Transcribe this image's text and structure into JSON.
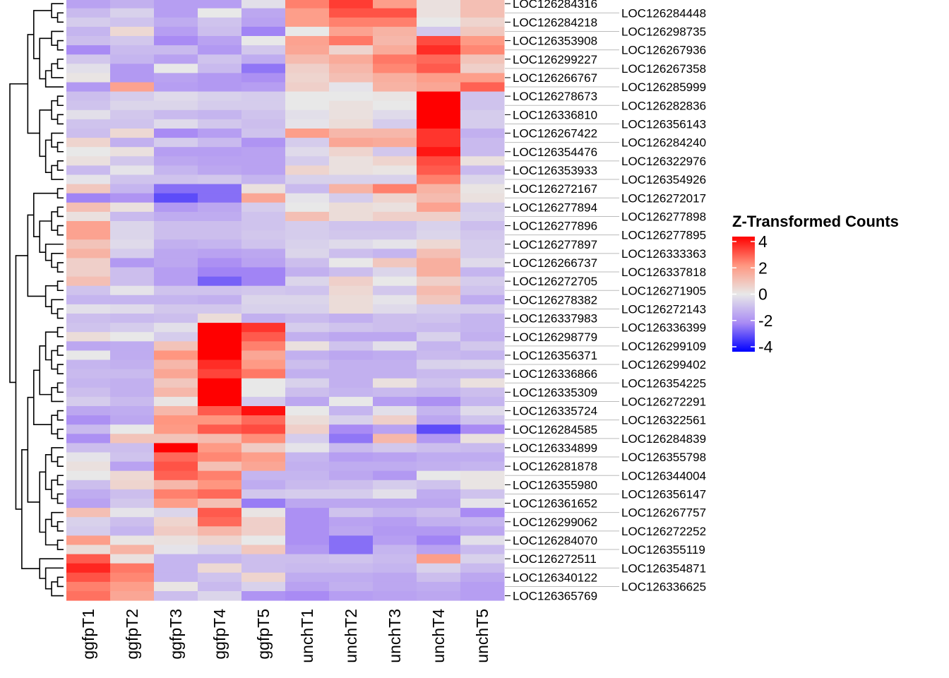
{
  "chart_data": {
    "type": "heatmap",
    "columns": [
      "ggfpT1",
      "ggfpT2",
      "ggfpT3",
      "ggfpT4",
      "ggfpT5",
      "unchT1",
      "unchT2",
      "unchT3",
      "unchT4",
      "unchT5"
    ],
    "rows": [
      "LOC126284316",
      "LOC126284448",
      "LOC126284218",
      "LOC126298735",
      "LOC126353908",
      "LOC126267936",
      "LOC126299227",
      "LOC126267358",
      "LOC126266767",
      "LOC126285999",
      "LOC126278673",
      "LOC126282836",
      "LOC126336810",
      "LOC126356143",
      "LOC126267422",
      "LOC126284240",
      "LOC126354476",
      "LOC126322976",
      "LOC126353933",
      "LOC126354926",
      "LOC126272167",
      "LOC126272017",
      "LOC126277894",
      "LOC126277898",
      "LOC126277896",
      "LOC126277895",
      "LOC126277897",
      "LOC126333363",
      "LOC126266737",
      "LOC126337818",
      "LOC126272705",
      "LOC126271905",
      "LOC126278382",
      "LOC126272143",
      "LOC126337983",
      "LOC126336399",
      "LOC126298779",
      "LOC126299109",
      "LOC126356371",
      "LOC126299402",
      "LOC126336866",
      "LOC126354225",
      "LOC126335309",
      "LOC126272291",
      "LOC126335724",
      "LOC126322561",
      "LOC126284585",
      "LOC126284839",
      "LOC126334899",
      "LOC126355798",
      "LOC126281878",
      "LOC126344004",
      "LOC126355980",
      "LOC126356147",
      "LOC126361652",
      "LOC126267757",
      "LOC126299062",
      "LOC126272252",
      "LOC126284070",
      "LOC126355119",
      "LOC126272511",
      "LOC126354871",
      "LOC126340122",
      "LOC126336625",
      "LOC126365769"
    ],
    "values": [
      [
        -1.5,
        -1.2,
        -1.6,
        -1.6,
        -0.2,
        2.3,
        3.2,
        1.8,
        0.2,
        1.0
      ],
      [
        -1.0,
        -0.5,
        -1.6,
        0,
        -1.4,
        1.8,
        2.9,
        2.9,
        0.2,
        1.0
      ],
      [
        -0.6,
        -0.8,
        -1.3,
        -0.8,
        -1.5,
        1.8,
        2.3,
        2.3,
        0,
        0.5
      ],
      [
        -1.1,
        0.4,
        -1.6,
        -0.9,
        -2.1,
        0,
        1.7,
        1.3,
        -0.7,
        0.8
      ],
      [
        -0.9,
        -0.7,
        -2.0,
        -1.5,
        0,
        1.7,
        2.4,
        1.2,
        3.0,
        1.9
      ],
      [
        -2.0,
        -1.0,
        -1.0,
        -1.7,
        -0.7,
        1.6,
        0.5,
        1.5,
        3.4,
        2.2
      ],
      [
        -0.7,
        -1.1,
        -1.5,
        -0.8,
        -1.3,
        1.1,
        1.5,
        2.4,
        2.6,
        0.9
      ],
      [
        -0.2,
        -1.7,
        0,
        -1.0,
        -2.3,
        0.6,
        1.2,
        2.2,
        2.8,
        0.6
      ],
      [
        0.1,
        -1.7,
        -1.5,
        -1.7,
        -1.9,
        0.5,
        1.0,
        1.4,
        1.8,
        1.8
      ],
      [
        -1.7,
        1.7,
        -1.6,
        -1.7,
        -1.6,
        0.6,
        -0.1,
        1.3,
        1.6,
        2.7
      ],
      [
        -0.9,
        -0.6,
        -0.3,
        -0.5,
        -0.6,
        0,
        0,
        0.1,
        4.5,
        -0.8
      ],
      [
        -0.8,
        -0.4,
        -0.4,
        -0.6,
        -0.6,
        0,
        0.2,
        0,
        4.5,
        -0.8
      ],
      [
        -0.2,
        -0.7,
        -1.0,
        -1.1,
        -0.8,
        -0.2,
        0.2,
        -0.3,
        4.5,
        -0.6
      ],
      [
        -0.8,
        -0.8,
        -0.3,
        -0.7,
        -0.9,
        -0.1,
        0.3,
        -0.6,
        4.5,
        -0.6
      ],
      [
        -0.9,
        0.4,
        -2.0,
        -1.6,
        -0.8,
        1.8,
        1.2,
        1.2,
        3.3,
        -1.2
      ],
      [
        0.5,
        -1.2,
        -0.6,
        -1.0,
        -1.8,
        -0.6,
        1.6,
        1.5,
        3.3,
        -1.0
      ],
      [
        0,
        0.2,
        -1.6,
        -1.6,
        -1.5,
        -0.3,
        0.5,
        -0.7,
        3.7,
        -1.0
      ],
      [
        0.2,
        -0.7,
        -1.4,
        -1.5,
        -1.5,
        -0.6,
        0.2,
        0.5,
        3.0,
        0.2
      ],
      [
        -1.0,
        -0.1,
        -1.1,
        -1.4,
        -1.5,
        0.5,
        0.2,
        0.1,
        2.8,
        -1.0
      ],
      [
        -0.1,
        -0.8,
        -0.8,
        -0.7,
        -1.1,
        -0.5,
        -0.5,
        -0.5,
        2.3,
        -0.4
      ],
      [
        0.8,
        -1.1,
        -2.4,
        -2.4,
        0.2,
        -1.0,
        1.3,
        2.3,
        1.3,
        0.1
      ],
      [
        -2.1,
        -1.8,
        -2.9,
        -2.4,
        1.6,
        -0.1,
        -0.6,
        0.5,
        1.1,
        0.2
      ],
      [
        1.0,
        0.2,
        -1.7,
        -1.4,
        -0.6,
        0,
        0.3,
        0.2,
        1.7,
        -0.6
      ],
      [
        0.2,
        -1.0,
        -1.3,
        -1.3,
        -0.8,
        1.0,
        0.3,
        0.6,
        0.6,
        -0.5
      ],
      [
        1.7,
        -0.4,
        -0.9,
        -0.9,
        -0.8,
        -0.6,
        -0.8,
        -0.8,
        -0.5,
        -0.9
      ],
      [
        1.7,
        -0.4,
        -0.9,
        -0.9,
        -0.7,
        -0.6,
        -0.7,
        -0.7,
        -0.4,
        -0.7
      ],
      [
        0.9,
        -0.3,
        -1.2,
        -1.1,
        -0.8,
        -0.5,
        -0.3,
        -0.1,
        0.4,
        -0.6
      ],
      [
        1.3,
        -0.6,
        -1.4,
        -1.5,
        -1.4,
        -0.4,
        -0.9,
        -1.1,
        1.0,
        -0.6
      ],
      [
        0.6,
        -1.7,
        -1.4,
        -1.9,
        -1.5,
        -0.9,
        0,
        0.8,
        1.4,
        -0.3
      ],
      [
        0.6,
        -0.9,
        -1.6,
        -2.1,
        -2.1,
        -1.2,
        -0.9,
        -0.4,
        1.4,
        -1.1
      ],
      [
        1.0,
        -0.9,
        -1.6,
        -2.6,
        -2.1,
        -0.4,
        0.6,
        0,
        0.6,
        -0.6
      ],
      [
        -0.8,
        -0.1,
        -0.8,
        -0.8,
        -0.7,
        -0.8,
        0.4,
        -0.7,
        1.1,
        -0.8
      ],
      [
        -1.1,
        -1.1,
        -1.1,
        -1.2,
        -0.4,
        -0.4,
        0.3,
        -0.1,
        0.8,
        -1.3
      ],
      [
        -0.2,
        -0.3,
        -0.7,
        -0.7,
        -0.5,
        -0.5,
        0.3,
        -0.3,
        -0.6,
        -0.6
      ],
      [
        -0.9,
        -1.0,
        -0.9,
        0.3,
        -1.2,
        -1.0,
        -1.2,
        -0.9,
        -0.8,
        -1.1
      ],
      [
        -0.8,
        -0.6,
        -0.2,
        4.5,
        3.3,
        -0.6,
        -0.8,
        -0.9,
        -1.0,
        -1.1
      ],
      [
        0.3,
        0,
        -0.6,
        4.5,
        2.8,
        -1.2,
        -1.4,
        -1.4,
        -0.5,
        -1.2
      ],
      [
        -1.4,
        -1.3,
        0.9,
        4.5,
        2.3,
        0.2,
        -0.8,
        -0.2,
        -1.1,
        -0.7
      ],
      [
        0,
        -1.3,
        2.0,
        4.0,
        1.6,
        -1.2,
        -1.4,
        -1.3,
        -1.0,
        -1.1
      ],
      [
        -1.1,
        -1.2,
        1.2,
        3.4,
        1.9,
        -0.9,
        -1.2,
        -1.2,
        -0.5,
        -0.4
      ],
      [
        -1.0,
        -1.0,
        1.6,
        3.1,
        2.4,
        -1.2,
        -1.2,
        -1.2,
        -1.0,
        -1.0
      ],
      [
        -1.1,
        -1.2,
        0.8,
        4.5,
        0,
        -0.5,
        -1.2,
        0.2,
        -0.8,
        0.2
      ],
      [
        -0.9,
        -1.2,
        1.2,
        4.5,
        0,
        -0.9,
        -1.1,
        -1.0,
        -1.1,
        -0.9
      ],
      [
        -0.6,
        -1.0,
        0.1,
        4.5,
        -0.7,
        -1.4,
        0,
        -1.6,
        -1.9,
        -1.1
      ],
      [
        -1.4,
        -1.3,
        1.2,
        2.8,
        3.8,
        0,
        -1.1,
        -0.2,
        -1.1,
        -0.3
      ],
      [
        -1.9,
        -1.4,
        2.0,
        2.0,
        2.6,
        0.3,
        -0.5,
        0.6,
        -1.4,
        -0.8
      ],
      [
        -1.0,
        0,
        1.9,
        2.8,
        3.0,
        0.6,
        -2.0,
        -1.5,
        -2.9,
        -2.0
      ],
      [
        -1.9,
        0.9,
        0.9,
        1.1,
        2.1,
        -0.6,
        -2.3,
        1.2,
        -1.7,
        0.2
      ],
      [
        -0.9,
        -0.9,
        4.5,
        1.9,
        0.7,
        -0.1,
        -1.0,
        -0.7,
        -0.9,
        -1.0
      ],
      [
        -0.1,
        -0.8,
        2.6,
        2.2,
        1.8,
        -1.1,
        -1.6,
        -1.5,
        -1.3,
        -1.3
      ],
      [
        0.2,
        -1.5,
        2.9,
        1.0,
        1.6,
        -1.2,
        -1.3,
        -1.3,
        -1.2,
        -1.1
      ],
      [
        0,
        0.4,
        2.7,
        2.3,
        -1.1,
        -1.1,
        -1.4,
        -1.7,
        0,
        0.1
      ],
      [
        -0.9,
        0.5,
        1.2,
        2.0,
        -1.3,
        -1.0,
        -0.9,
        -0.6,
        -0.8,
        0.1
      ],
      [
        -1.3,
        -0.9,
        2.3,
        2.6,
        -0.7,
        -0.6,
        -0.6,
        -0.2,
        -1.3,
        -0.8
      ],
      [
        -1.5,
        -0.7,
        1.8,
        1.0,
        -2.2,
        -1.4,
        -1.4,
        -1.4,
        -1.4,
        -0.1
      ],
      [
        1.0,
        -0.1,
        -0.4,
        2.8,
        0.1,
        -1.9,
        -0.8,
        -1.1,
        -0.9,
        -2.0
      ],
      [
        -0.5,
        -0.9,
        0.5,
        2.6,
        0.6,
        -1.9,
        -1.5,
        -1.6,
        -1.2,
        -1.1
      ],
      [
        -0.6,
        -1.1,
        0.7,
        1.2,
        0.6,
        -1.9,
        -1.4,
        -1.7,
        -1.7,
        -1.4
      ],
      [
        1.8,
        0.1,
        0.2,
        0.5,
        0,
        -1.9,
        -2.4,
        -1.6,
        -2.1,
        -0.2
      ],
      [
        0.3,
        1.3,
        -0.1,
        -0.5,
        0.8,
        -1.7,
        -2.4,
        -1.1,
        -1.5,
        -1.0
      ],
      [
        2.8,
        0.2,
        -1.1,
        -1.1,
        -0.9,
        -0.9,
        -0.8,
        -1.0,
        1.8,
        -0.5
      ],
      [
        3.5,
        2.4,
        -1.1,
        0.4,
        -0.9,
        -1.0,
        -1.0,
        -1.1,
        -0.5,
        -1.0
      ],
      [
        2.9,
        2.2,
        -1.1,
        -0.8,
        0.5,
        -1.3,
        -1.3,
        -1.4,
        -0.9,
        -1.4
      ],
      [
        2.3,
        1.8,
        0.1,
        -1.0,
        -0.5,
        -1.5,
        -1.2,
        -1.4,
        -1.3,
        -1.6
      ],
      [
        2.5,
        1.6,
        -0.9,
        -0.4,
        -1.8,
        -2.0,
        -1.6,
        -1.5,
        -1.4,
        -1.6
      ]
    ],
    "legend": {
      "title": "Z-Transformed Counts",
      "ticks": [
        "4",
        "2",
        "0",
        "-2",
        "-4"
      ],
      "tick_values": [
        4,
        2,
        0,
        -2,
        -4
      ],
      "range": [
        -4,
        4
      ],
      "colors": {
        "-4": "#0000FF",
        "-2": "#A98BF4",
        "0": "#E8E8E8",
        "2": "#FF9680",
        "4": "#FF0000"
      }
    },
    "row_dendrogram": true,
    "legend_placement": "right"
  }
}
